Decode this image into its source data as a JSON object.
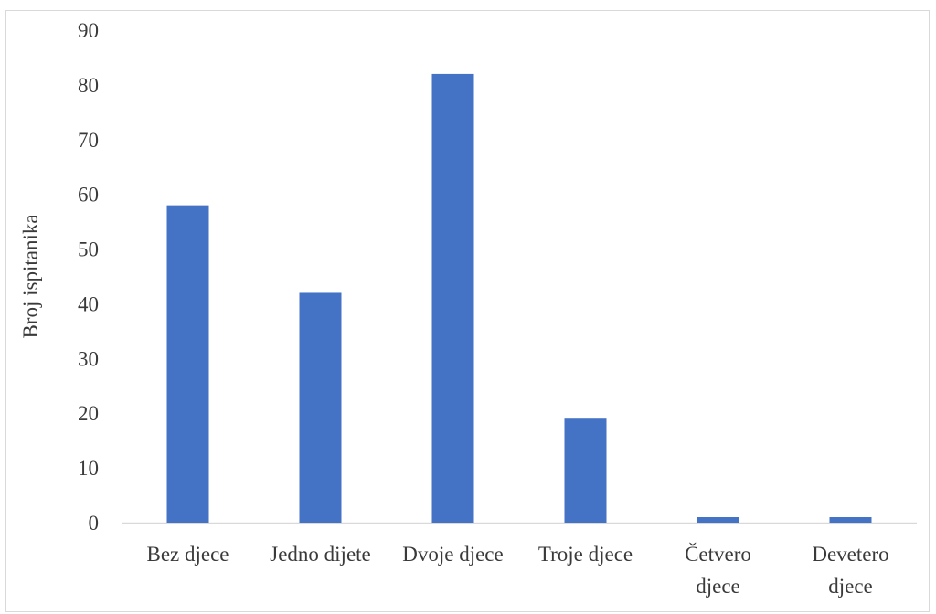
{
  "chart_data": {
    "type": "bar",
    "title": "",
    "xlabel": "",
    "ylabel": "Broj ispitanika",
    "categories": [
      [
        "Bez djece"
      ],
      [
        "Jedno dijete"
      ],
      [
        "Dvoje djece"
      ],
      [
        "Troje djece"
      ],
      [
        "Četvero",
        "djece"
      ],
      [
        "Devetero",
        "djece"
      ]
    ],
    "values": [
      58,
      42,
      82,
      19,
      1,
      1
    ],
    "ylim": [
      0,
      90
    ],
    "yticks": [
      "0",
      "10",
      "20",
      "30",
      "40",
      "50",
      "60",
      "70",
      "80",
      "90"
    ],
    "grid": false,
    "legend": "none",
    "bar_color": "#4472c4",
    "axis_color": "#d9d9d9"
  }
}
